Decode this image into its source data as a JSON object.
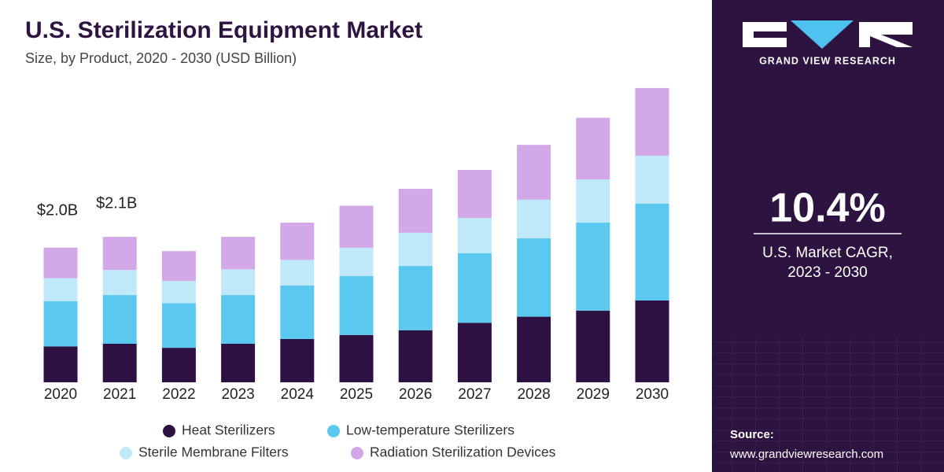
{
  "chart_data": {
    "type": "stacked_bar",
    "title": "U.S. Sterilization Equipment Market",
    "subtitle": "Size, by Product, 2020 - 2030 (USD Billion)",
    "categories": [
      "2020",
      "2021",
      "2022",
      "2023",
      "2024",
      "2025",
      "2026",
      "2027",
      "2028",
      "2029",
      "2030"
    ],
    "series": [
      {
        "name": "Heat Sterilizers",
        "color": "#2d1143",
        "values": [
          0.53,
          0.57,
          0.51,
          0.57,
          0.64,
          0.7,
          0.77,
          0.88,
          0.97,
          1.06,
          1.21
        ]
      },
      {
        "name": "Low-temperature Sterilizers",
        "color": "#5bc8f0",
        "values": [
          0.67,
          0.72,
          0.66,
          0.72,
          0.79,
          0.87,
          0.95,
          1.03,
          1.16,
          1.3,
          1.43
        ]
      },
      {
        "name": "Sterile Membrane Filters",
        "color": "#bfe8f9",
        "values": [
          0.34,
          0.37,
          0.33,
          0.38,
          0.38,
          0.42,
          0.49,
          0.52,
          0.57,
          0.64,
          0.71
        ]
      },
      {
        "name": "Radiation Sterilization Devices",
        "color": "#d2a8e8",
        "values": [
          0.45,
          0.49,
          0.44,
          0.48,
          0.55,
          0.62,
          0.65,
          0.71,
          0.81,
          0.91,
          1.0
        ]
      }
    ],
    "annotations": [
      {
        "x": "2020",
        "value": 2.0,
        "label": "$2.0B"
      },
      {
        "x": "2021",
        "value": 2.1,
        "label": "$2.1B"
      }
    ]
  },
  "panel": {
    "brand": "GRAND VIEW RESEARCH",
    "cagr": "10.4%",
    "cagr_label": "U.S. Market CAGR,",
    "cagr_period": "2023 - 2030",
    "source_label": "Source:",
    "source_url": "www.grandviewresearch.com"
  }
}
